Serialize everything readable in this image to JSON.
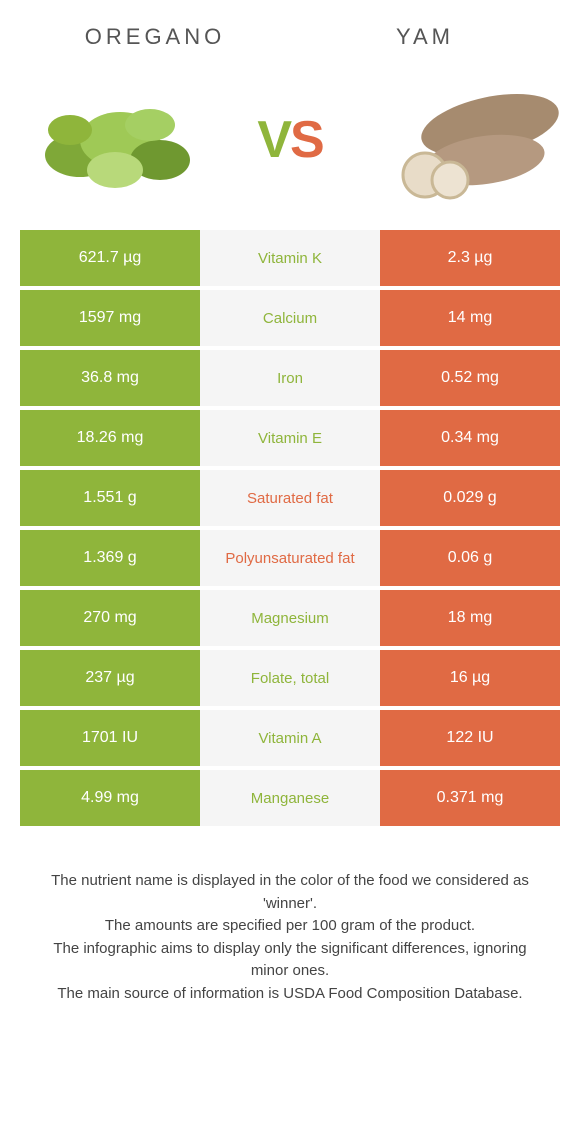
{
  "header": {
    "left_title": "OREGANO",
    "right_title": "YAM",
    "vs_v": "V",
    "vs_s": "S"
  },
  "colors": {
    "left": "#8fb53b",
    "right": "#e06a44",
    "mid_bg": "#f5f5f5",
    "winner_left": "#8fb53b",
    "winner_right": "#e06a44"
  },
  "rows": [
    {
      "left": "621.7 µg",
      "label": "Vitamin K",
      "right": "2.3 µg",
      "winner": "left"
    },
    {
      "left": "1597 mg",
      "label": "Calcium",
      "right": "14 mg",
      "winner": "left"
    },
    {
      "left": "36.8 mg",
      "label": "Iron",
      "right": "0.52 mg",
      "winner": "left"
    },
    {
      "left": "18.26 mg",
      "label": "Vitamin E",
      "right": "0.34 mg",
      "winner": "left"
    },
    {
      "left": "1.551 g",
      "label": "Saturated fat",
      "right": "0.029 g",
      "winner": "right"
    },
    {
      "left": "1.369 g",
      "label": "Polyunsaturated fat",
      "right": "0.06 g",
      "winner": "right"
    },
    {
      "left": "270 mg",
      "label": "Magnesium",
      "right": "18 mg",
      "winner": "left"
    },
    {
      "left": "237 µg",
      "label": "Folate, total",
      "right": "16 µg",
      "winner": "left"
    },
    {
      "left": "1701 IU",
      "label": "Vitamin A",
      "right": "122 IU",
      "winner": "left"
    },
    {
      "left": "4.99 mg",
      "label": "Manganese",
      "right": "0.371 mg",
      "winner": "left"
    }
  ],
  "footer": {
    "line1": "The nutrient name is displayed in the color of the food we considered as 'winner'.",
    "line2": "The amounts are specified per 100 gram of the product.",
    "line3": "The infographic aims to display only the significant differences, ignoring minor ones.",
    "line4": "The main source of information is USDA Food Composition Database."
  }
}
